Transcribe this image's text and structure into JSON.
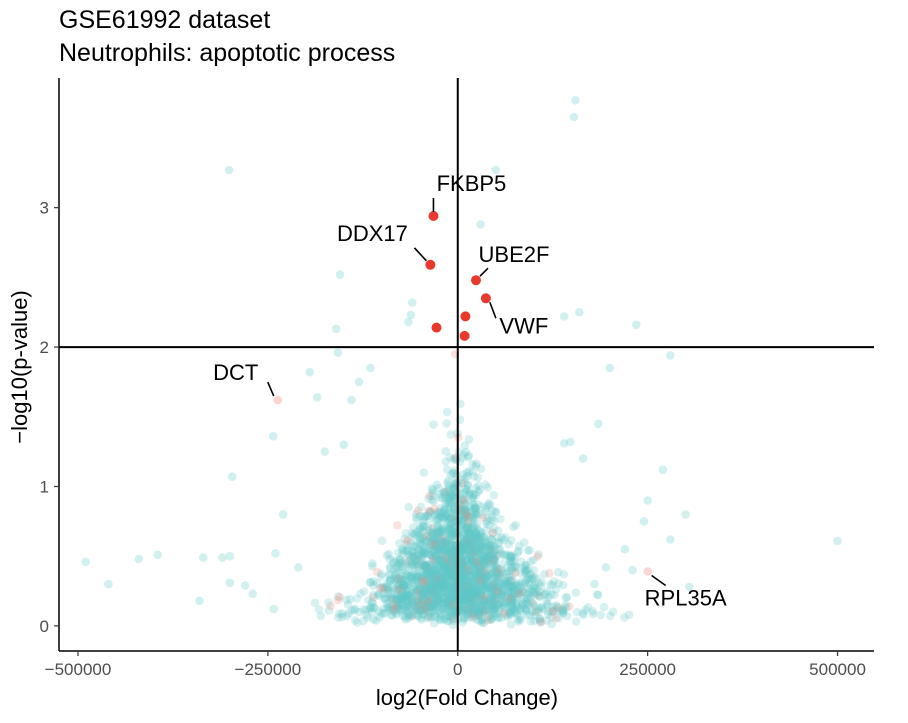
{
  "chart_data": {
    "type": "scatter",
    "title": "GSE61992 dataset",
    "subtitle": "Neutrophils: apoptotic process",
    "xlabel": "log2(Fold Change)",
    "ylabel": "-log10(p-value)",
    "xlim": [
      -525000,
      548000
    ],
    "ylim": [
      -0.18,
      3.93
    ],
    "x_ticks": [
      -500000,
      -250000,
      0,
      250000,
      500000
    ],
    "x_tick_labels": [
      "-500000",
      "-250000",
      "0",
      "250000",
      "500000"
    ],
    "y_ticks": [
      0,
      1,
      2,
      3
    ],
    "y_tick_labels": [
      "0",
      "1",
      "2",
      "3"
    ],
    "thresholds": {
      "x": 0,
      "y": 2
    },
    "grid": false,
    "colors": {
      "background_points": "#5ec8c8",
      "apoptotic_points": "#f08a80",
      "highlight_points": "#e8392c",
      "threshold_lines": "#000000"
    },
    "highlighted": [
      {
        "label": "FKBP5",
        "x": -32000,
        "y": 2.94
      },
      {
        "label": "DDX17",
        "x": -36000,
        "y": 2.59
      },
      {
        "label": "UBE2F",
        "x": 24000,
        "y": 2.48
      },
      {
        "label": "VWF",
        "x": 37000,
        "y": 2.35
      },
      {
        "label": "",
        "x": 10000,
        "y": 2.22
      },
      {
        "label": "",
        "x": -28000,
        "y": 2.14
      },
      {
        "label": "",
        "x": 9000,
        "y": 2.08
      }
    ],
    "labeled_faint": [
      {
        "label": "DCT",
        "x": -237000,
        "y": 1.62
      },
      {
        "label": "RPL35A",
        "x": 250000,
        "y": 0.39
      }
    ],
    "outliers": [
      {
        "x": 155000,
        "y": 3.77
      },
      {
        "x": 153000,
        "y": 3.65
      },
      {
        "x": 50000,
        "y": 3.27
      },
      {
        "x": -301000,
        "y": 3.27
      },
      {
        "x": 30000,
        "y": 2.88
      },
      {
        "x": -155000,
        "y": 2.52
      },
      {
        "x": 160000,
        "y": 2.25
      },
      {
        "x": 140000,
        "y": 2.22
      },
      {
        "x": 235000,
        "y": 2.16
      },
      {
        "x": -160000,
        "y": 2.13
      },
      {
        "x": -60000,
        "y": 2.32
      },
      {
        "x": -62000,
        "y": 2.23
      },
      {
        "x": -65000,
        "y": 2.18
      },
      {
        "x": 280000,
        "y": 1.94
      },
      {
        "x": -158000,
        "y": 1.96
      },
      {
        "x": -195000,
        "y": 1.82
      },
      {
        "x": 200000,
        "y": 1.85
      },
      {
        "x": -185000,
        "y": 1.64
      },
      {
        "x": -243000,
        "y": 1.36
      },
      {
        "x": -297000,
        "y": 1.07
      },
      {
        "x": -490000,
        "y": 0.46
      },
      {
        "x": -460000,
        "y": 0.3
      },
      {
        "x": -420000,
        "y": 0.48
      },
      {
        "x": -395000,
        "y": 0.51
      },
      {
        "x": -340000,
        "y": 0.18
      },
      {
        "x": -335000,
        "y": 0.49
      },
      {
        "x": -310000,
        "y": 0.49
      },
      {
        "x": -300000,
        "y": 0.5
      },
      {
        "x": -300000,
        "y": 0.31
      },
      {
        "x": -280000,
        "y": 0.29
      },
      {
        "x": -270000,
        "y": 0.23
      },
      {
        "x": 270000,
        "y": 1.12
      },
      {
        "x": 500000,
        "y": 0.61
      },
      {
        "x": 300000,
        "y": 0.8
      },
      {
        "x": 250000,
        "y": 0.9
      },
      {
        "x": 230000,
        "y": 0.4
      },
      {
        "x": 305000,
        "y": 0.28
      },
      {
        "x": 220000,
        "y": 0.55
      },
      {
        "x": 180000,
        "y": 0.3
      },
      {
        "x": 195000,
        "y": 0.42
      },
      {
        "x": 245000,
        "y": 0.75
      },
      {
        "x": 280000,
        "y": 0.62
      },
      {
        "x": -230000,
        "y": 0.8
      },
      {
        "x": -210000,
        "y": 0.42
      },
      {
        "x": -240000,
        "y": 0.52
      },
      {
        "x": 148000,
        "y": 1.32
      },
      {
        "x": 140000,
        "y": 1.31
      },
      {
        "x": 165000,
        "y": 1.2
      },
      {
        "x": 185000,
        "y": 1.45
      },
      {
        "x": -175000,
        "y": 1.25
      },
      {
        "x": -150000,
        "y": 1.3
      },
      {
        "x": -130000,
        "y": 1.75
      },
      {
        "x": -140000,
        "y": 1.62
      },
      {
        "x": -115000,
        "y": 1.85
      }
    ]
  }
}
